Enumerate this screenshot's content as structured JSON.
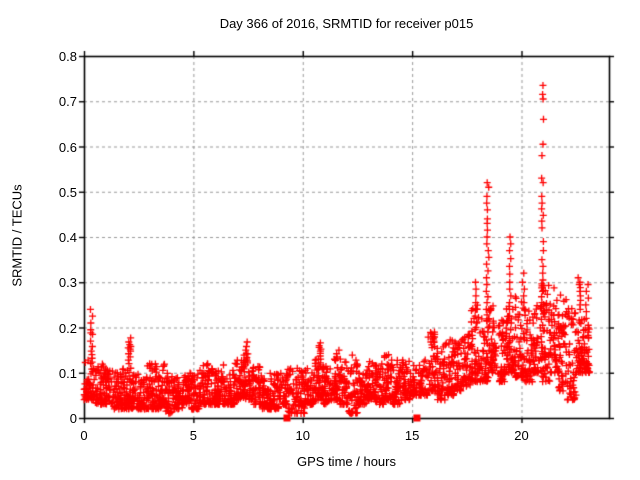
{
  "chart_data": {
    "type": "scatter",
    "title": "Day 366 of 2016, SRMTID for receiver p015",
    "xlabel": "GPS time / hours",
    "ylabel": "SRMTID / TECUs",
    "xlim": [
      0,
      24
    ],
    "ylim": [
      0,
      0.8
    ],
    "xticks": {
      "values": [
        0,
        5,
        10,
        15,
        20
      ],
      "labels": [
        "0",
        "5",
        "10",
        "15",
        "20"
      ]
    },
    "yticks": {
      "values": [
        0,
        0.1,
        0.2,
        0.3,
        0.4,
        0.5,
        0.6,
        0.7,
        0.8
      ],
      "labels": [
        "0",
        "0.1",
        "0.2",
        "0.3",
        "0.4",
        "0.5",
        "0.6",
        "0.7",
        "0.8"
      ]
    },
    "grid": true,
    "legend": "none",
    "marker": {
      "shape": "plus",
      "size": 7,
      "color": "#ff0000"
    },
    "colors": {
      "grid": "#9a9a9a",
      "axis": "#000000",
      "background": "#ffffff",
      "text": "#000000"
    },
    "seed": 20161231,
    "cloud_bins": [
      [
        0.0,
        0.5,
        0.04,
        0.13,
        55
      ],
      [
        0.5,
        0.9,
        0.03,
        0.12,
        45
      ],
      [
        0.9,
        1.3,
        0.03,
        0.11,
        45
      ],
      [
        1.3,
        1.7,
        0.02,
        0.1,
        45
      ],
      [
        1.7,
        2.1,
        0.02,
        0.11,
        45
      ],
      [
        2.1,
        2.5,
        0.02,
        0.1,
        45
      ],
      [
        2.5,
        2.9,
        0.02,
        0.09,
        45
      ],
      [
        2.9,
        3.3,
        0.02,
        0.12,
        45
      ],
      [
        3.3,
        3.7,
        0.02,
        0.12,
        45
      ],
      [
        3.7,
        4.1,
        0.01,
        0.1,
        45
      ],
      [
        4.1,
        4.5,
        0.02,
        0.09,
        45
      ],
      [
        4.5,
        4.9,
        0.03,
        0.1,
        45
      ],
      [
        4.9,
        5.3,
        0.02,
        0.1,
        45
      ],
      [
        5.3,
        5.7,
        0.03,
        0.12,
        45
      ],
      [
        5.7,
        6.1,
        0.03,
        0.11,
        45
      ],
      [
        6.1,
        6.5,
        0.03,
        0.12,
        45
      ],
      [
        6.5,
        6.9,
        0.03,
        0.11,
        45
      ],
      [
        6.9,
        7.3,
        0.04,
        0.13,
        45
      ],
      [
        7.3,
        7.7,
        0.04,
        0.15,
        45
      ],
      [
        7.7,
        8.1,
        0.03,
        0.12,
        45
      ],
      [
        8.1,
        8.5,
        0.02,
        0.1,
        45
      ],
      [
        8.5,
        8.9,
        0.02,
        0.1,
        45
      ],
      [
        8.9,
        9.28,
        0.03,
        0.1,
        38
      ],
      [
        9.3,
        9.7,
        0.01,
        0.11,
        40
      ],
      [
        9.7,
        10.1,
        0.01,
        0.11,
        45
      ],
      [
        10.1,
        10.5,
        0.03,
        0.11,
        45
      ],
      [
        10.5,
        10.9,
        0.04,
        0.13,
        45
      ],
      [
        10.9,
        11.3,
        0.03,
        0.12,
        45
      ],
      [
        11.3,
        11.7,
        0.04,
        0.14,
        45
      ],
      [
        11.7,
        12.1,
        0.03,
        0.13,
        45
      ],
      [
        12.1,
        12.5,
        0.01,
        0.14,
        45
      ],
      [
        12.5,
        12.9,
        0.03,
        0.11,
        45
      ],
      [
        12.9,
        13.3,
        0.04,
        0.13,
        45
      ],
      [
        13.3,
        13.7,
        0.03,
        0.12,
        45
      ],
      [
        13.7,
        14.1,
        0.04,
        0.14,
        45
      ],
      [
        14.1,
        14.5,
        0.03,
        0.13,
        45
      ],
      [
        14.5,
        14.9,
        0.04,
        0.14,
        45
      ],
      [
        14.9,
        15.22,
        0.05,
        0.12,
        36
      ],
      [
        15.3,
        15.7,
        0.05,
        0.15,
        40
      ],
      [
        15.7,
        16.1,
        0.06,
        0.19,
        45
      ],
      [
        16.1,
        16.5,
        0.04,
        0.16,
        45
      ],
      [
        16.5,
        16.9,
        0.05,
        0.19,
        45
      ],
      [
        16.9,
        17.3,
        0.06,
        0.17,
        45
      ],
      [
        17.3,
        17.7,
        0.07,
        0.2,
        45
      ],
      [
        17.7,
        18.1,
        0.08,
        0.25,
        50
      ],
      [
        18.1,
        18.5,
        0.08,
        0.22,
        45
      ],
      [
        18.5,
        18.9,
        0.1,
        0.25,
        50
      ],
      [
        18.9,
        19.3,
        0.08,
        0.22,
        45
      ],
      [
        19.3,
        19.7,
        0.1,
        0.25,
        50
      ],
      [
        19.7,
        20.1,
        0.09,
        0.27,
        50
      ],
      [
        20.1,
        20.5,
        0.08,
        0.24,
        45
      ],
      [
        20.5,
        20.9,
        0.1,
        0.25,
        45
      ],
      [
        20.9,
        21.3,
        0.08,
        0.3,
        50
      ],
      [
        21.3,
        21.7,
        0.1,
        0.3,
        50
      ],
      [
        21.7,
        22.1,
        0.06,
        0.28,
        50
      ],
      [
        22.1,
        22.5,
        0.04,
        0.25,
        45
      ],
      [
        22.5,
        22.9,
        0.1,
        0.22,
        55
      ],
      [
        22.9,
        23.1,
        0.1,
        0.2,
        30
      ]
    ],
    "spike_stacks": [
      {
        "x": 0.35,
        "ys": [
          0.24,
          0.225,
          0.21,
          0.195,
          0.188,
          0.185,
          0.17,
          0.158,
          0.148,
          0.14,
          0.132
        ]
      },
      {
        "x": 2.08,
        "ys": [
          0.177,
          0.168,
          0.162,
          0.158,
          0.155,
          0.152,
          0.148,
          0.142,
          0.135,
          0.128,
          0.12,
          0.11
        ]
      },
      {
        "x": 3.0,
        "ys": [
          0.12,
          0.115,
          0.11
        ]
      },
      {
        "x": 7.45,
        "ys": [
          0.168,
          0.158,
          0.15,
          0.142,
          0.134,
          0.126
        ]
      },
      {
        "x": 10.8,
        "ys": [
          0.166,
          0.16,
          0.156,
          0.152,
          0.148,
          0.143,
          0.137,
          0.13,
          0.122,
          0.114
        ]
      },
      {
        "x": 11.6,
        "ys": [
          0.15,
          0.142,
          0.135
        ]
      },
      {
        "x": 16.0,
        "ys": [
          0.19,
          0.18,
          0.17
        ]
      },
      {
        "x": 17.9,
        "ys": [
          0.3,
          0.285,
          0.27,
          0.255,
          0.24,
          0.225,
          0.21
        ]
      },
      {
        "x": 18.45,
        "ys": [
          0.52,
          0.51,
          0.49,
          0.475,
          0.46,
          0.44,
          0.43,
          0.415,
          0.4,
          0.385,
          0.37,
          0.355,
          0.34,
          0.325,
          0.31,
          0.295,
          0.28,
          0.268,
          0.255,
          0.24,
          0.228,
          0.215,
          0.2,
          0.19
        ]
      },
      {
        "x": 19.5,
        "ys": [
          0.4,
          0.385,
          0.37,
          0.352,
          0.335,
          0.318,
          0.3,
          0.285,
          0.27,
          0.255,
          0.24,
          0.225,
          0.21,
          0.195,
          0.18
        ]
      },
      {
        "x": 20.1,
        "ys": [
          0.32,
          0.3,
          0.285,
          0.27,
          0.255,
          0.24
        ]
      },
      {
        "x": 20.95,
        "ys": [
          0.735,
          0.715,
          0.705,
          0.66,
          0.605,
          0.58,
          0.53,
          0.52,
          0.49,
          0.475,
          0.462,
          0.448,
          0.435,
          0.42,
          0.39,
          0.37,
          0.35,
          0.335,
          0.32,
          0.305,
          0.292,
          0.28,
          0.268,
          0.255,
          0.242,
          0.23,
          0.218,
          0.205,
          0.192,
          0.18,
          0.168,
          0.155,
          0.142,
          0.13
        ]
      },
      {
        "x": 22.65,
        "ys": [
          0.31,
          0.3,
          0.295,
          0.288,
          0.28,
          0.27,
          0.26,
          0.25,
          0.24
        ]
      },
      {
        "x": 23.0,
        "ys": [
          0.295,
          0.28,
          0.265,
          0.25,
          0.235,
          0.22,
          0.205,
          0.19
        ]
      }
    ],
    "zero_square_markers": [
      {
        "x": 9.28,
        "y": 0
      },
      {
        "x": 15.22,
        "y": 0
      }
    ]
  }
}
